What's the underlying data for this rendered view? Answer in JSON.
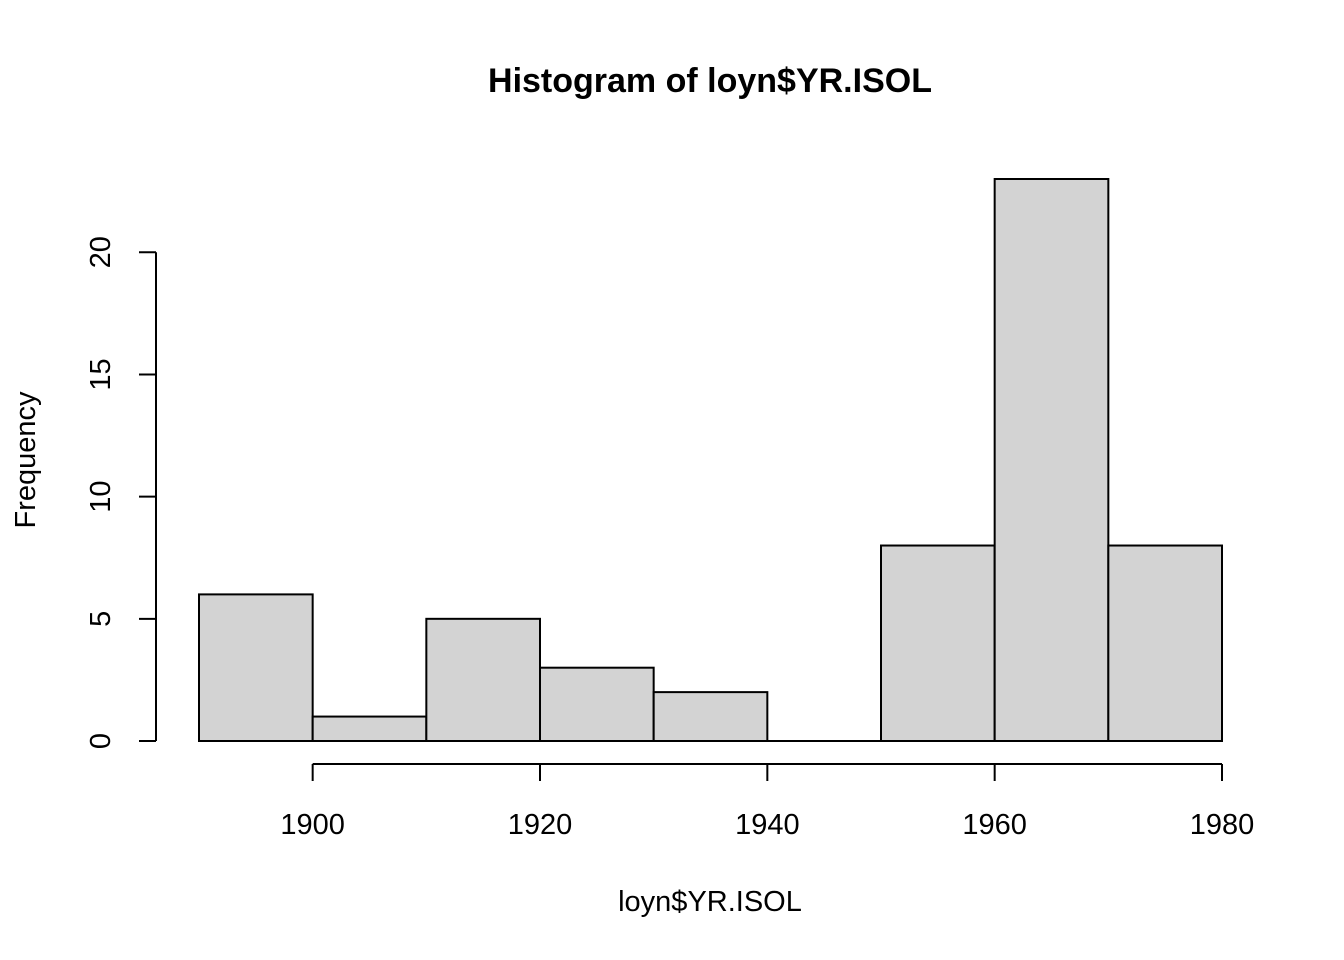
{
  "chart_data": {
    "type": "bar",
    "title": "Histogram of loyn$YR.ISOL",
    "xlabel": "loyn$YR.ISOL",
    "ylabel": "Frequency",
    "bins": [
      {
        "start": 1890,
        "end": 1900,
        "count": 6
      },
      {
        "start": 1900,
        "end": 1910,
        "count": 1
      },
      {
        "start": 1910,
        "end": 1920,
        "count": 5
      },
      {
        "start": 1920,
        "end": 1930,
        "count": 3
      },
      {
        "start": 1930,
        "end": 1940,
        "count": 2
      },
      {
        "start": 1940,
        "end": 1950,
        "count": 0
      },
      {
        "start": 1950,
        "end": 1960,
        "count": 8
      },
      {
        "start": 1960,
        "end": 1970,
        "count": 23
      },
      {
        "start": 1970,
        "end": 1980,
        "count": 8
      }
    ],
    "x_ticks": [
      1900,
      1920,
      1940,
      1960,
      1980
    ],
    "y_ticks": [
      0,
      5,
      10,
      15,
      20
    ],
    "xlim": [
      1890,
      1980
    ],
    "ylim": [
      0,
      23
    ],
    "bar_color": "#d3d3d3",
    "border_color": "#000000",
    "grid": false,
    "legend": "none"
  }
}
